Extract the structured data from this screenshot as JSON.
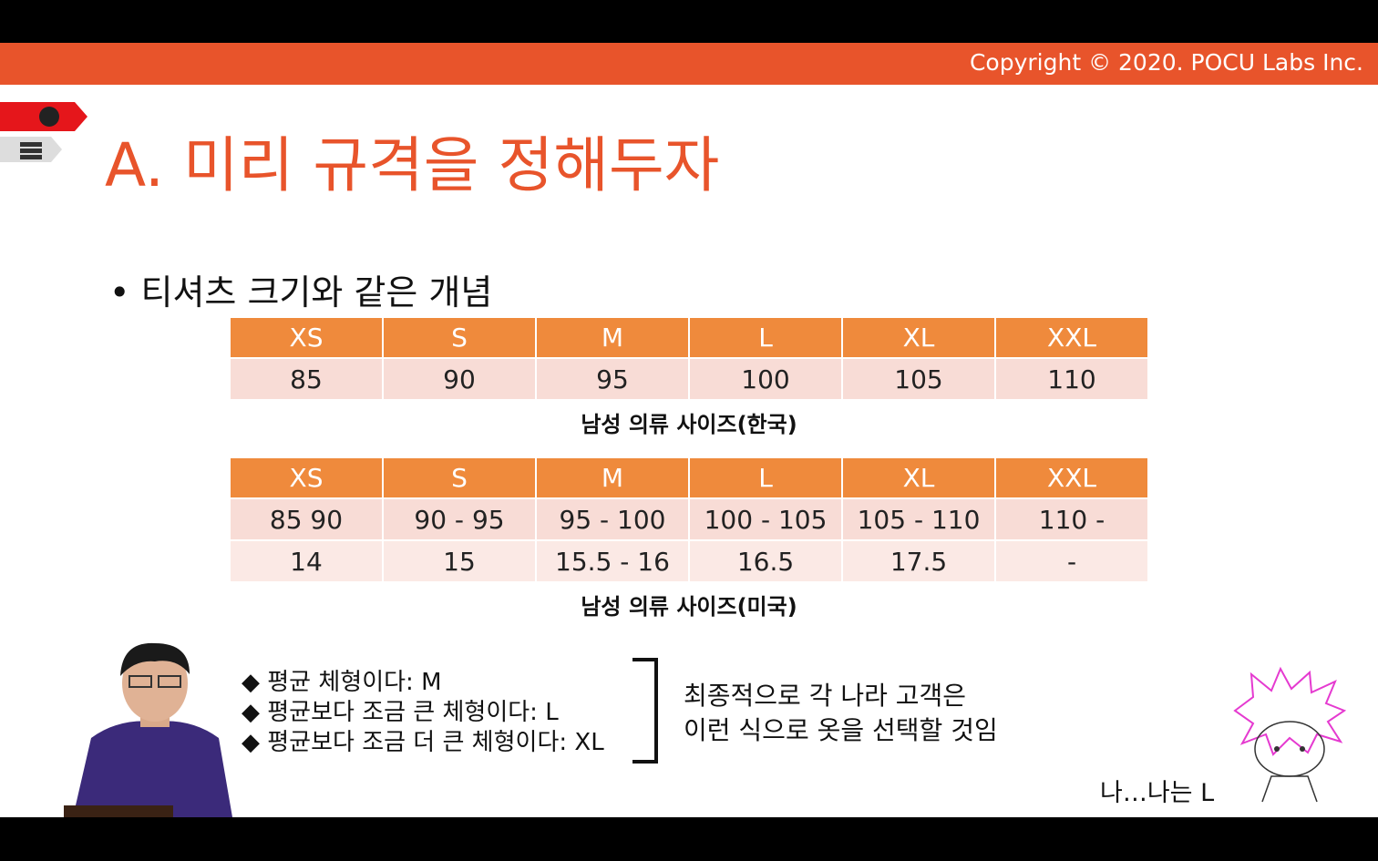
{
  "header": {
    "copyright": "Copyright © 2020. POCU Labs Inc."
  },
  "title": "A. 미리 규격을 정해두자",
  "bullet": "티셔츠 크기와 같은 개념",
  "table1": {
    "header": [
      "XS",
      "S",
      "M",
      "L",
      "XL",
      "XXL"
    ],
    "rows": [
      [
        "85",
        "90",
        "95",
        "100",
        "105",
        "110"
      ]
    ],
    "caption": "남성 의류 사이즈(한국)"
  },
  "table2": {
    "header": [
      "XS",
      "S",
      "M",
      "L",
      "XL",
      "XXL"
    ],
    "rows": [
      [
        "85  90",
        "90 - 95",
        "95 - 100",
        "100 - 105",
        "105 - 110",
        "110 -"
      ],
      [
        "14",
        "15",
        "15.5 - 16",
        "16.5",
        "17.5",
        "-"
      ]
    ],
    "caption": "남성 의류 사이즈(미국)"
  },
  "notes": [
    "◆ 평균 체형이다: M",
    "◆ 평균보다 조금 큰 체형이다: L",
    "◆ 평균보다 조금 더 큰 체형이다: XL"
  ],
  "conclusion": [
    "최종적으로 각 나라 고객은",
    "이런 식으로 옷을 선택할 것임"
  ],
  "comic_caption": "나…나는 L"
}
